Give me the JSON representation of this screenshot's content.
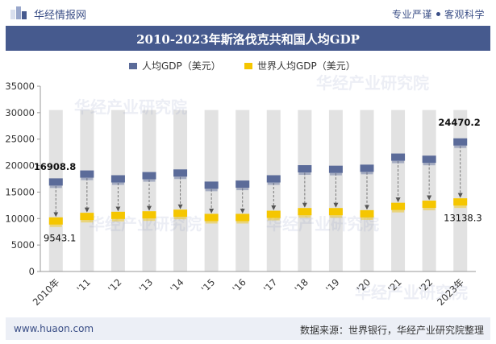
{
  "header": {
    "site_name": "华经情报网",
    "slogan_a": "专业严谨",
    "slogan_b": "客观科学"
  },
  "footer": {
    "url": "www.huaon.com",
    "source": "数据来源：世界银行，华经产业研究院整理"
  },
  "watermark": "华经产业研究院",
  "colors": {
    "title_bg": "#465a8e",
    "series_country": "#5b6b99",
    "series_world": "#f5c600",
    "column_bg": "#e2e2e2"
  },
  "chart_data": {
    "type": "line",
    "title": "2010-2023年斯洛伐克共和国人均GDP",
    "categories": [
      "2010年",
      "'11",
      "'12",
      "'13",
      "'14",
      "'15",
      "'16",
      "'17",
      "'18",
      "'19",
      "'20",
      "'21",
      "'22",
      "2023年"
    ],
    "series": [
      {
        "name": "人均GDP（美元）",
        "values": [
          16908.8,
          18400,
          17500,
          18100,
          18600,
          16300,
          16500,
          17500,
          19400,
          19300,
          19500,
          21600,
          21200,
          24470.2
        ]
      },
      {
        "name": "世界人均GDP（美元）",
        "values": [
          9543.1,
          10400,
          10600,
          10700,
          11000,
          10200,
          10200,
          10800,
          11300,
          11300,
          10900,
          12300,
          12700,
          13138.3
        ]
      }
    ],
    "data_labels": [
      {
        "series": 0,
        "index": 0,
        "text": "16908.8"
      },
      {
        "series": 1,
        "index": 0,
        "text": "9543.1"
      },
      {
        "series": 0,
        "index": 13,
        "text": "24470.2"
      },
      {
        "series": 1,
        "index": 13,
        "text": "13138.3"
      }
    ],
    "y_ticks": [
      0,
      5000,
      10000,
      15000,
      20000,
      25000,
      30000,
      35000
    ],
    "ylim": [
      0,
      35000
    ],
    "column_top": 30500,
    "legend_position": "top-center",
    "grid": false
  }
}
